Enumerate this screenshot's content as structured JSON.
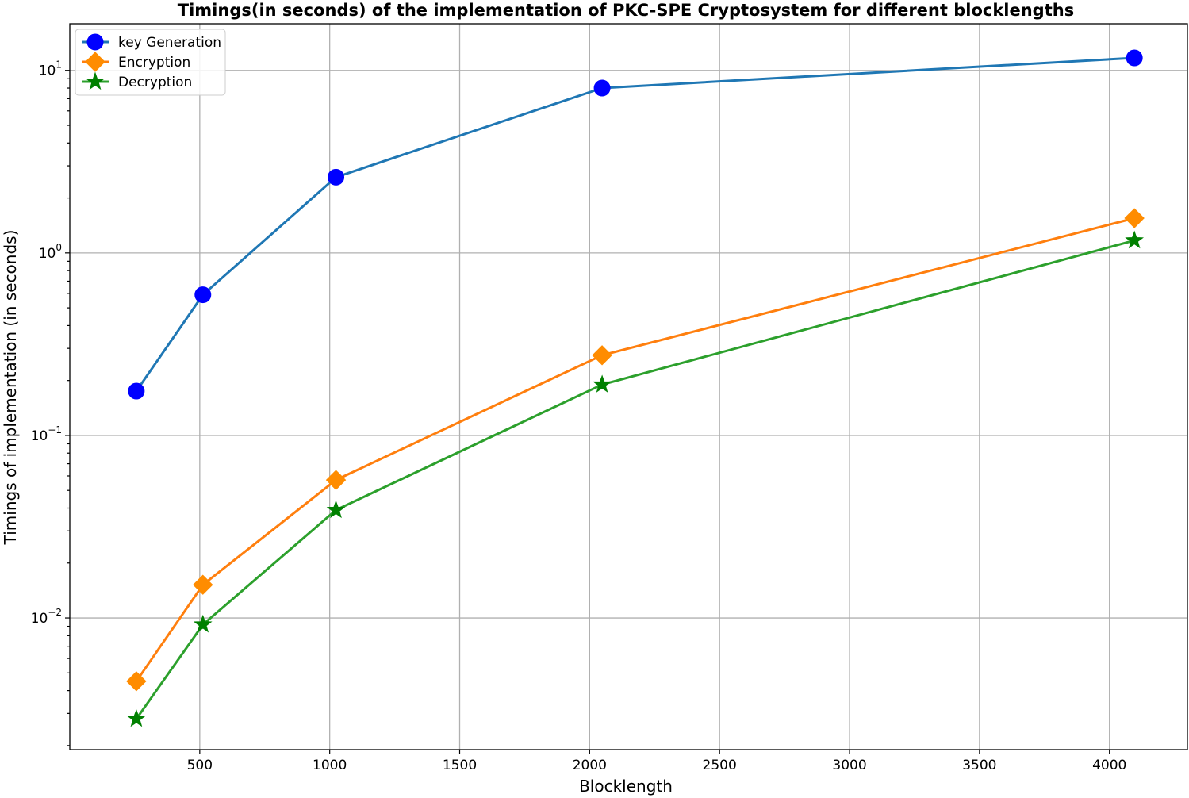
{
  "chart_data": {
    "type": "line",
    "title": "Timings(in seconds) of the implementation of PKC-SPE Cryptosystem for different blocklengths",
    "xlabel": "Blocklength",
    "ylabel": "Timings of implementation (in seconds)",
    "y_scale": "log",
    "grid": true,
    "legend_position": "top-left",
    "x": [
      256,
      512,
      1024,
      2048,
      4096
    ],
    "xlim": [
      0,
      4300
    ],
    "ylim": [
      0.0019,
      18
    ],
    "x_ticks": [
      500,
      1000,
      1500,
      2000,
      2500,
      3000,
      3500,
      4000
    ],
    "x_tick_labels": [
      "500",
      "1000",
      "1500",
      "2000",
      "2500",
      "3000",
      "3500",
      "4000"
    ],
    "y_ticks": [
      0.01,
      0.1,
      1,
      10
    ],
    "y_tick_labels": [
      {
        "base": "10",
        "exp": "−2"
      },
      {
        "base": "10",
        "exp": "−1"
      },
      {
        "base": "10",
        "exp": "0"
      },
      {
        "base": "10",
        "exp": "1"
      }
    ],
    "series": [
      {
        "name": "key Generation",
        "values": [
          0.175,
          0.59,
          2.6,
          8.0,
          11.7
        ],
        "line_color": "#1f77b4",
        "marker_color": "#0000ff",
        "marker": "circle"
      },
      {
        "name": "Encryption",
        "values": [
          0.0045,
          0.0152,
          0.057,
          0.275,
          1.55
        ],
        "line_color": "#ff7f0e",
        "marker_color": "#ff8c00",
        "marker": "diamond"
      },
      {
        "name": "Decryption",
        "values": [
          0.0028,
          0.0092,
          0.039,
          0.19,
          1.17
        ],
        "line_color": "#2ca02c",
        "marker_color": "#008000",
        "marker": "star"
      }
    ]
  }
}
